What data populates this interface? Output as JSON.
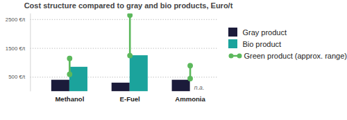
{
  "chart_data": {
    "type": "bar",
    "title": "Cost structure compared to gray and bio products, Euro/t",
    "categories": [
      "Methanol",
      "E-Fuel",
      "Ammonia"
    ],
    "series": [
      {
        "name": "Gray product",
        "color": "#1b1b3a",
        "values": [
          400,
          300,
          400
        ]
      },
      {
        "name": "Bio product",
        "color": "#1ba39c",
        "values": [
          850,
          1250,
          null
        ],
        "value_labels": [
          null,
          null,
          "n.a."
        ]
      },
      {
        "name": "Green product (approx. range)",
        "color": "#5cb85c",
        "type": "range",
        "marker": "circle",
        "values": [
          [
            600,
            1150
          ],
          [
            1250,
            2650
          ],
          [
            450,
            900
          ]
        ]
      }
    ],
    "ylim": [
      0,
      2700
    ],
    "yticks": [
      {
        "value": 500,
        "label": "500 €/t"
      },
      {
        "value": 1500,
        "label": "1500 €/t"
      },
      {
        "value": 2500,
        "label": "2500 €/t"
      }
    ],
    "grid": true,
    "legend": "right"
  }
}
